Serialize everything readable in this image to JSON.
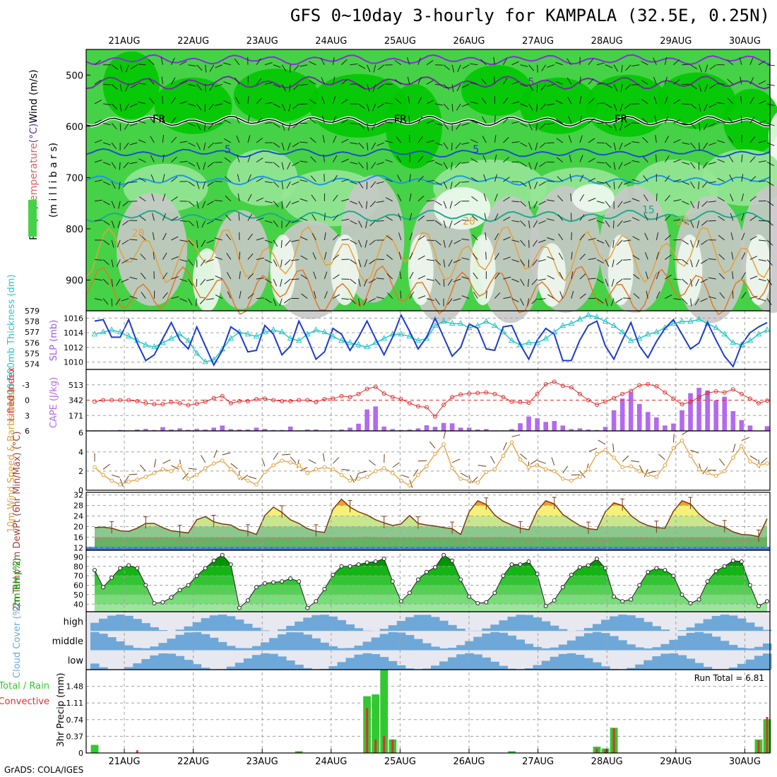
{
  "title": "GFS 0~10day 3-hourly for KAMPALA (32.5E, 0.25N)",
  "credit": "GrADS: COLA/IGES",
  "colors": {
    "frame": "#000000",
    "grid": "#a0a0a0",
    "rh_dark": "#00c800",
    "rh_mid": "#46d246",
    "rh_light": "#96e696",
    "rh_pale": "#c8c8c8",
    "rh_white": "#f0f8f0",
    "slp": "#1e3cc8",
    "thickness": "#28c8c8",
    "lifted_index": "#e03030",
    "cape": "#b469f0",
    "wind10m": "#e6a03c",
    "temp_warm": "#f0a030",
    "temp_yellow": "#f5f078",
    "temp_light": "#c8e68c",
    "temp_green": "#8cc88c",
    "rh2m_dark": "#00b400",
    "rh2m_light": "#78dc78",
    "cloud": "#6ea8d8",
    "cloud_clear": "#e8e8f0",
    "precip_total": "#32c832",
    "precip_conv": "#e03030"
  },
  "chart_data": {
    "type": "meteogram",
    "days": [
      "21AUG",
      "22AUG",
      "23AUG",
      "24AUG",
      "25AUG",
      "26AUG",
      "27AUG",
      "28AUG",
      "29AUG",
      "30AUG"
    ],
    "panels": {
      "upper_air": {
        "ylabel_segments": [
          {
            "text": "RH (%)",
            "color": "#000000"
          },
          {
            "text": "Temperature",
            "color": "#e06060"
          },
          {
            "text": "(°C)",
            "color": "#7030a0"
          },
          {
            "text": "Wind (m/s)",
            "color": "#000000"
          }
        ],
        "axis_label": "(m i l l i b a r s)",
        "y_ticks": [
          500,
          600,
          700,
          800,
          900
        ],
        "ylim": [
          960,
          450
        ],
        "contour_labels": [
          {
            "text": "5",
            "day": 5.9,
            "p": 520,
            "color": "#7030a0"
          },
          {
            "text": "FR",
            "day": 0.5,
            "p": 593,
            "color": "#000000"
          },
          {
            "text": "FR",
            "day": 4.0,
            "p": 593,
            "color": "#000000"
          },
          {
            "text": "FR",
            "day": 7.2,
            "p": 593,
            "color": "#000000"
          },
          {
            "text": "5",
            "day": 1.5,
            "p": 652,
            "color": "#1e3cc8"
          },
          {
            "text": "5",
            "day": 5.1,
            "p": 652,
            "color": "#1e3cc8"
          },
          {
            "text": "15",
            "day": 7.6,
            "p": 770,
            "color": "#1eaa8c"
          },
          {
            "text": "20",
            "day": 0.2,
            "p": 815,
            "color": "#e6a03c"
          },
          {
            "text": "20",
            "day": 5.0,
            "p": 792,
            "color": "#e6a03c"
          },
          {
            "text": "20",
            "day": 8.1,
            "p": 792,
            "color": "#e6a03c"
          }
        ]
      },
      "slp_thickness": {
        "ylabel_left": "1000-500mb Thickness (dm)",
        "ylabel_right": "SLP (mb)",
        "left_ticks": [
          574,
          575,
          576,
          577,
          578,
          579
        ],
        "left_range": [
          573.5,
          579
        ],
        "right_ticks": [
          1010,
          1012,
          1014,
          1016
        ],
        "right_range": [
          1009,
          1017
        ],
        "slp": [
          1015.6,
          1015.8,
          1013.4,
          1013.4,
          1015.8,
          1012.6,
          1010.2,
          1011.0,
          1013.2,
          1015.4,
          1013.0,
          1011.8,
          1014.8,
          1012.2,
          1009.6,
          1011.6,
          1014.8,
          1014.0,
          1011.4,
          1011.6,
          1015.0,
          1013.8,
          1011.0,
          1012.2,
          1015.6,
          1013.2,
          1010.4,
          1011.4,
          1014.6,
          1013.8,
          1011.6,
          1013.4,
          1015.6,
          1013.2,
          1011.0,
          1013.4,
          1016.4,
          1014.2,
          1011.8,
          1013.4,
          1016.0,
          1013.4,
          1010.8,
          1012.0,
          1015.2,
          1014.6,
          1011.8,
          1011.6,
          1014.8,
          1015.0,
          1012.4,
          1010.4,
          1013.0,
          1014.6,
          1013.8,
          1010.2,
          1010.2,
          1013.0,
          1015.0,
          1015.6,
          1012.2,
          1010.4,
          1013.0,
          1015.4,
          1012.2,
          1010.6,
          1012.8,
          1014.6,
          1015.8,
          1013.8,
          1011.8,
          1012.6,
          1015.4,
          1013.0,
          1010.8,
          1009.4,
          1012.4,
          1014.0,
          1014.8,
          1015.4
        ],
        "thickness": [
          576.8,
          577.0,
          577.2,
          577.0,
          576.6,
          576.2,
          575.8,
          575.6,
          576.0,
          576.4,
          576.8,
          576.2,
          575.0,
          574.2,
          574.4,
          575.4,
          576.4,
          577.0,
          576.8,
          576.6,
          577.0,
          577.2,
          577.0,
          576.4,
          576.2,
          576.8,
          577.2,
          577.0,
          576.6,
          576.2,
          576.0,
          575.8,
          575.6,
          576.0,
          576.4,
          576.8,
          576.8,
          576.6,
          576.2,
          576.4,
          577.6,
          578.0,
          577.8,
          577.8,
          577.4,
          577.6,
          578.0,
          577.6,
          577.0,
          576.2,
          575.8,
          576.0,
          576.0,
          576.4,
          577.0,
          577.6,
          577.8,
          578.2,
          578.6,
          578.4,
          578.0,
          577.6,
          577.0,
          576.2,
          576.4,
          576.8,
          577.0,
          577.4,
          577.8,
          578.0,
          578.0,
          578.2,
          577.8,
          577.4,
          576.8,
          576.0,
          575.8,
          576.2,
          576.8,
          577.2
        ]
      },
      "cape_li": {
        "ylabel_left": "Lifted Index",
        "ylabel_right": "CAPE (J/kg)",
        "li_ticks": [
          -3,
          0,
          3,
          6
        ],
        "li_range": [
          6,
          -6
        ],
        "cape_ticks": [
          171,
          342,
          513
        ],
        "cape_range": [
          0,
          684
        ],
        "li": [
          0.3,
          0,
          0,
          0,
          0,
          0.2,
          0.6,
          0.8,
          0.8,
          0.4,
          0.6,
          1,
          0.7,
          0.3,
          -0.4,
          -0.8,
          0.6,
          0.2,
          0.2,
          -0.2,
          -0.3,
          0,
          0.2,
          0.2,
          0,
          0,
          0.4,
          -0.2,
          -0.3,
          -0.8,
          -0.6,
          -1.2,
          -2.2,
          -2.6,
          -1.3,
          -0.6,
          -0.2,
          0.6,
          1.2,
          1.4,
          3.2,
          0.9,
          -0.6,
          -1.1,
          -1.3,
          -1.4,
          -1.5,
          -1.2,
          -0.6,
          0.3,
          0.4,
          0.5,
          -1.2,
          -3.1,
          -3.6,
          -2.8,
          -2.5,
          -1.2,
          0,
          0.9,
          0.3,
          -0.4,
          -1.2,
          -1.8,
          -2.9,
          -3.1,
          -2.7,
          -1.5,
          -0.3,
          0.8,
          0.4,
          -0.6,
          -1.4,
          -1.7,
          -1.5,
          -2.1,
          -1.2,
          -0.3,
          0.6,
          0.1
        ],
        "cape": [
          5,
          5,
          5,
          10,
          5,
          15,
          22,
          10,
          42,
          15,
          28,
          12,
          22,
          15,
          36,
          60,
          20,
          15,
          15,
          36,
          22,
          10,
          10,
          48,
          5,
          15,
          15,
          5,
          10,
          15,
          36,
          80,
          238,
          272,
          48,
          20,
          10,
          15,
          28,
          62,
          45,
          88,
          84,
          36,
          36,
          15,
          20,
          5,
          5,
          20,
          85,
          160,
          140,
          100,
          110,
          60,
          20,
          28,
          15,
          10,
          44,
          230,
          360,
          430,
          300,
          210,
          150,
          60,
          82,
          230,
          420,
          480,
          450,
          340,
          380,
          220,
          120,
          60,
          0,
          52
        ]
      },
      "wind10m": {
        "ylabel": "10m Wind Speed & Barbs (m/s)",
        "y_ticks": [
          0,
          2,
          4,
          6
        ],
        "y_range": [
          0,
          6.2
        ],
        "speed": [
          2.4,
          1.6,
          1.0,
          0.6,
          0.9,
          1.1,
          1.4,
          1.8,
          2.2,
          2.0,
          2.6,
          1.2,
          1.6,
          2.3,
          2.8,
          3.1,
          2.2,
          1.4,
          1.0,
          0.6,
          1.9,
          2.6,
          3.1,
          2.9,
          2.6,
          1.8,
          2.2,
          2.4,
          2.2,
          1.6,
          1.0,
          1.2,
          1.4,
          2.0,
          2.3,
          1.8,
          1.0,
          0.5,
          1.6,
          2.5,
          3.8,
          4.8,
          2.3,
          1.2,
          1.0,
          0.8,
          1.9,
          2.2,
          3.6,
          5.0,
          3.2,
          2.4,
          2.6,
          2.2,
          2.0,
          1.2,
          1.0,
          1.4,
          2.2,
          3.8,
          4.2,
          3.4,
          2.4,
          2.5,
          2.0,
          1.6,
          1.4,
          2.6,
          4.4,
          5.2,
          3.6,
          2.2,
          1.8,
          1.5,
          2.0,
          3.4,
          4.6,
          3.0,
          2.6,
          2.8
        ]
      },
      "temp": {
        "ylabel": "2m Temp 2m DewPt (6hr Min/Max) (°C)",
        "y_ticks": [
          12,
          16,
          20,
          24,
          28,
          32
        ],
        "y_range": [
          11,
          33
        ],
        "temp": [
          19.6,
          19.8,
          19.4,
          18.4,
          18.2,
          19.4,
          21.2,
          21.2,
          19.6,
          18.4,
          18.0,
          17.6,
          22.6,
          23.8,
          21.8,
          21.0,
          20.6,
          18.8,
          18.2,
          17.0,
          24.2,
          27.4,
          25.4,
          22.6,
          21.2,
          19.2,
          18.2,
          17.8,
          26.6,
          30.4,
          27.4,
          25.6,
          24.4,
          22.6,
          21.4,
          20.4,
          21.0,
          24.2,
          21.2,
          20.6,
          20.2,
          19.6,
          19.2,
          17.0,
          25.6,
          29.8,
          28.4,
          24.4,
          22.0,
          20.6,
          19.4,
          18.8,
          26.0,
          29.8,
          28.6,
          24.6,
          22.4,
          20.4,
          19.2,
          18.8,
          25.6,
          29.0,
          28.0,
          24.2,
          21.8,
          20.4,
          19.6,
          19.4,
          25.8,
          29.8,
          28.6,
          24.8,
          22.2,
          20.6,
          19.8,
          18.0,
          17.0,
          16.8,
          16.2,
          23.0
        ],
        "dewpt": [
          15.4,
          15.6,
          15.2,
          15.0,
          15.0,
          15.4,
          15.6,
          15.4,
          15.6,
          15.2,
          14.8,
          14.6,
          14.8,
          15.0,
          15.2,
          15.4,
          15.4,
          15.0,
          14.6,
          14.4,
          15.0,
          15.4,
          15.2,
          15.6,
          15.8,
          15.4,
          15.0,
          14.8,
          15.4,
          15.6,
          15.6,
          15.8,
          16.0,
          15.8,
          15.4,
          15.2,
          15.0,
          15.2,
          15.4,
          15.6,
          15.6,
          15.4,
          15.0,
          14.8,
          15.0,
          15.4,
          15.6,
          15.8,
          15.8,
          15.4,
          15.0,
          14.8,
          15.0,
          15.2,
          15.4,
          15.6,
          15.4,
          15.0,
          14.6,
          14.6,
          14.8,
          15.0,
          15.2,
          15.4,
          15.6,
          15.4,
          15.0,
          14.8,
          15.0,
          15.2,
          15.4,
          15.6,
          15.4,
          15.0,
          14.8,
          14.6,
          14.6,
          14.8,
          15.0,
          15.2
        ]
      },
      "rh2m": {
        "ylabel": "2m RH (%)",
        "y_ticks": [
          40,
          50,
          60,
          70,
          80,
          90
        ],
        "y_range": [
          32,
          97
        ],
        "rh": [
          76,
          58,
          68,
          78,
          81,
          78,
          60,
          41,
          42,
          47,
          55,
          60,
          70,
          78,
          86,
          92,
          82,
          36,
          44,
          58,
          62,
          63,
          64,
          67,
          64,
          36,
          43,
          56,
          71,
          80,
          80,
          82,
          84,
          85,
          88,
          64,
          43,
          52,
          66,
          74,
          79,
          92,
          86,
          66,
          48,
          41,
          42,
          52,
          70,
          82,
          82,
          85,
          72,
          38,
          44,
          58,
          71,
          79,
          81,
          88,
          78,
          48,
          43,
          45,
          60,
          74,
          78,
          76,
          70,
          50,
          41,
          45,
          64,
          75,
          80,
          86,
          85,
          60,
          38,
          43
        ]
      },
      "clouds": {
        "ylabel": "Cloud Cover (%)",
        "levels": [
          "high",
          "middle",
          "low"
        ]
      },
      "precip": {
        "ylabel_total": "Total / Rain",
        "ylabel_conv": "Convective",
        "ylabel_axis": "3hr Precip (mm)",
        "run_total": "Run Total = 6.81",
        "y_ticks": [
          0,
          0.37,
          0.74,
          1.11,
          1.48
        ],
        "y_range": [
          0,
          1.85
        ],
        "total": [
          0.18,
          0,
          0,
          0,
          0,
          0,
          0,
          0,
          0,
          0,
          0,
          0,
          0,
          0,
          0,
          0,
          0,
          0,
          0,
          0,
          0,
          0,
          0,
          0,
          0.04,
          0,
          0,
          0,
          0,
          0,
          0,
          0,
          1.26,
          1.3,
          1.85,
          0.3,
          0,
          0,
          0,
          0,
          0,
          0,
          0,
          0,
          0,
          0,
          0,
          0,
          0,
          0.04,
          0,
          0,
          0,
          0,
          0,
          0,
          0,
          0,
          0,
          0.14,
          0.1,
          0.56,
          0,
          0,
          0,
          0,
          0,
          0,
          0,
          0,
          0,
          0,
          0,
          0,
          0,
          0,
          0,
          0,
          0.3,
          0.75
        ],
        "convective": [
          0,
          0,
          0,
          0,
          0,
          0.06,
          0,
          0,
          0,
          0,
          0,
          0,
          0,
          0,
          0,
          0,
          0,
          0,
          0,
          0,
          0,
          0,
          0,
          0,
          0.02,
          0,
          0,
          0,
          0,
          0,
          0,
          0,
          1.0,
          0.3,
          0.38,
          0.3,
          0,
          0,
          0,
          0,
          0,
          0,
          0,
          0,
          0,
          0,
          0,
          0,
          0,
          0,
          0,
          0,
          0,
          0,
          0,
          0,
          0,
          0,
          0,
          0.1,
          0.08,
          0.55,
          0,
          0,
          0,
          0,
          0,
          0,
          0,
          0,
          0,
          0,
          0,
          0,
          0,
          0,
          0,
          0,
          0.28,
          0.8
        ]
      }
    }
  }
}
